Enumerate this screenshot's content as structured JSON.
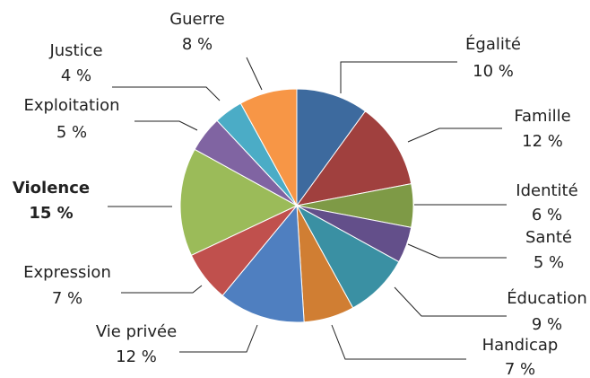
{
  "chart_data": {
    "type": "pie",
    "categories": [
      "Égalité",
      "Famille",
      "Identité",
      "Santé",
      "Éducation",
      "Handicap",
      "Vie privée",
      "Expression",
      "Violence",
      "Exploitation",
      "Justice",
      "Guerre"
    ],
    "values": [
      10,
      12,
      6,
      5,
      9,
      7,
      12,
      7,
      15,
      5,
      4,
      8
    ],
    "value_labels": [
      "10 %",
      "12 %",
      "6 %",
      "5 %",
      "9 %",
      "7 %",
      "12 %",
      "7 %",
      "15 %",
      "5 %",
      "4 %",
      "8 %"
    ],
    "colors": [
      "#3d6a9e",
      "#a0403e",
      "#7e9a46",
      "#634f8a",
      "#3a90a3",
      "#d07e33",
      "#4f7fc0",
      "#c0504d",
      "#9bbb59",
      "#8064a2",
      "#4bacc6",
      "#f79646"
    ]
  }
}
